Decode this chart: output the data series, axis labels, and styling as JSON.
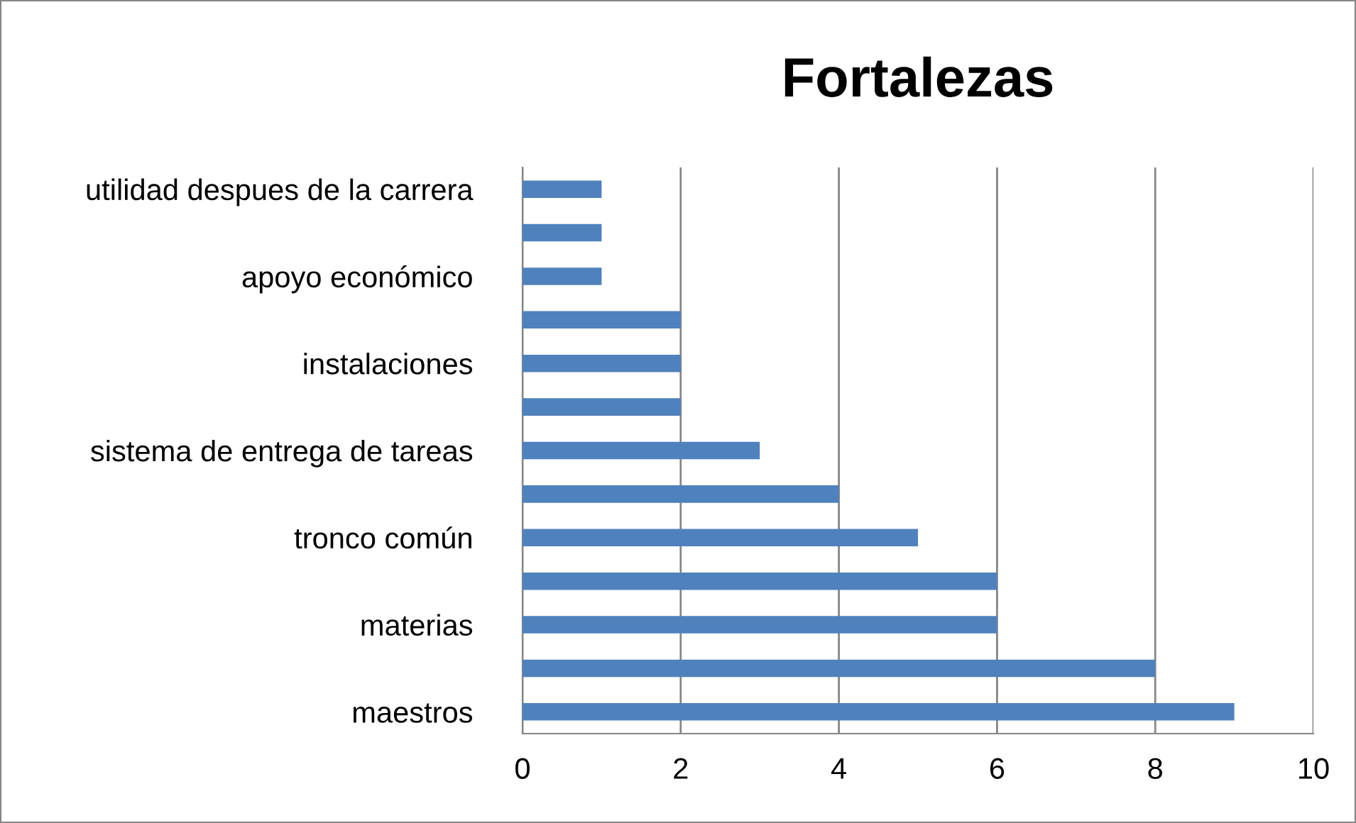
{
  "chart_data": {
    "type": "bar",
    "orientation": "horizontal",
    "title": "Fortalezas",
    "categories": [
      "utilidad despues de la carrera",
      null,
      "apoyo económico",
      null,
      "instalaciones",
      null,
      "sistema de entrega de tareas",
      null,
      "tronco común",
      null,
      "materias",
      null,
      "maestros"
    ],
    "values": [
      1,
      1,
      1,
      2,
      2,
      2,
      3,
      4,
      5,
      6,
      6,
      8,
      9
    ],
    "color": "#4f81bd",
    "xlim": [
      0,
      10
    ],
    "xticks": [
      0,
      2,
      4,
      6,
      8,
      10
    ],
    "grid": "x",
    "legend": false
  }
}
